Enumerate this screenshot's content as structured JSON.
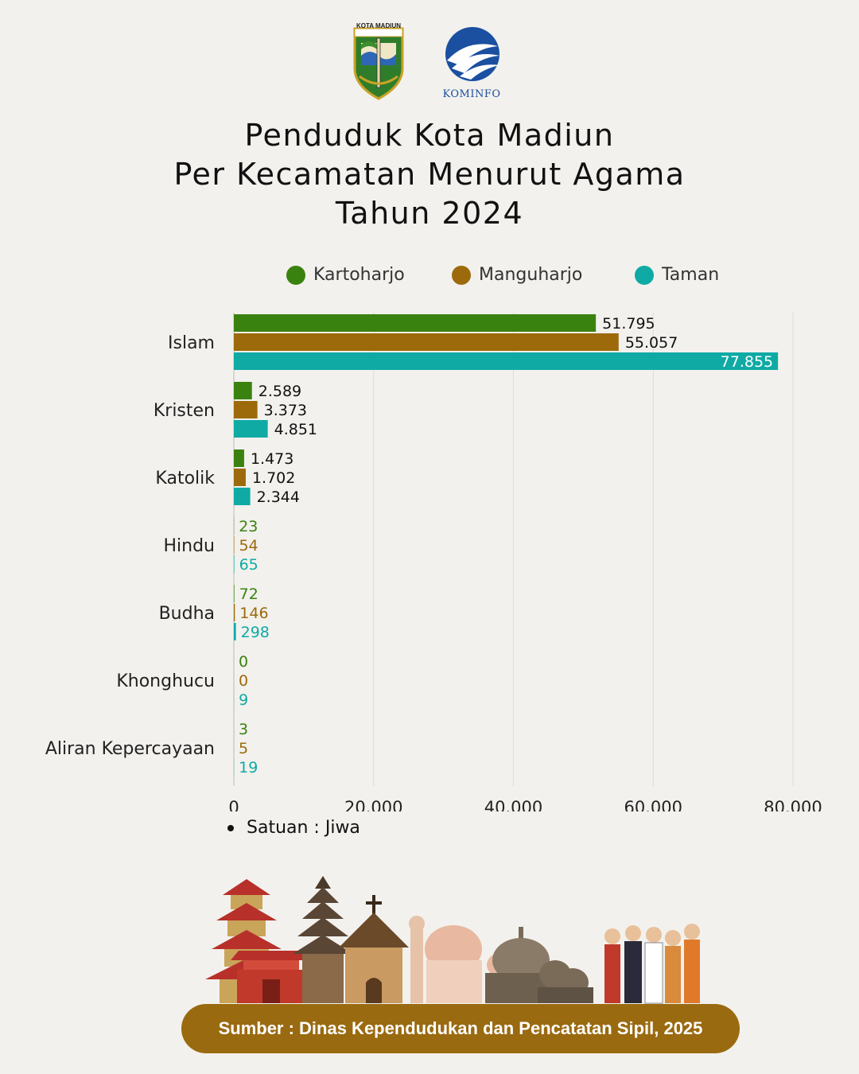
{
  "logos": {
    "city_seal_text": "KOTA MADIUN",
    "kominfo_text": "KOMINFO"
  },
  "title": {
    "line1": "Penduduk Kota Madiun",
    "line2": "Per Kecamatan Menurut Agama",
    "line3": "Tahun 2024"
  },
  "colors": {
    "kartoharjo": "#3a820f",
    "manguharjo": "#9c6a0a",
    "taman": "#0faaa4",
    "pill": "#9a6a10",
    "background": "#f2f1ed"
  },
  "chart_data": {
    "type": "bar",
    "orientation": "horizontal",
    "categories": [
      "Islam",
      "Kristen",
      "Katolik",
      "Hindu",
      "Budha",
      "Khonghucu",
      "Aliran Kepercayaan"
    ],
    "series": [
      {
        "name": "Kartoharjo",
        "values": [
          51795,
          2589,
          1473,
          23,
          72,
          0,
          3
        ],
        "labels": [
          "51.795",
          "2.589",
          "1.473",
          "23",
          "72",
          "0",
          "3"
        ],
        "color": "#3a820f"
      },
      {
        "name": "Manguharjo",
        "values": [
          55057,
          3373,
          1702,
          54,
          146,
          0,
          5
        ],
        "labels": [
          "55.057",
          "3.373",
          "1.702",
          "54",
          "146",
          "0",
          "5"
        ],
        "color": "#9c6a0a"
      },
      {
        "name": "Taman",
        "values": [
          77855,
          4851,
          2344,
          65,
          298,
          9,
          19
        ],
        "labels": [
          "77.855",
          "4.851",
          "2.344",
          "65",
          "298",
          "9",
          "19"
        ],
        "color": "#0faaa4"
      }
    ],
    "xlim": [
      0,
      80000
    ],
    "xticks": [
      0,
      20000,
      40000,
      60000,
      80000
    ],
    "xtick_labels": [
      "0",
      "20.000",
      "40.000",
      "60.000",
      "80.000"
    ],
    "grid": true,
    "legend_position": "top"
  },
  "unit_note": "Satuan : Jiwa",
  "source": "Sumber : Dinas Kependudukan dan Pencatatan Sipil, 2025"
}
